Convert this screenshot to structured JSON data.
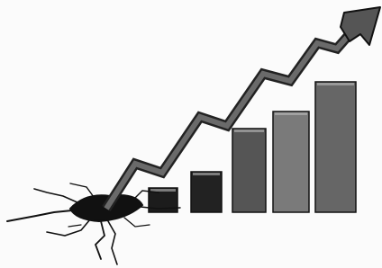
{
  "chart_data": {
    "type": "bar",
    "categories": [
      null,
      null,
      null,
      null,
      null
    ],
    "values": [
      27,
      45,
      93,
      112,
      145
    ],
    "colors": [
      "#1c1c1c",
      "#222222",
      "#555555",
      "#7a7a7a",
      "#666666"
    ],
    "ylim": [
      0,
      150
    ]
  }
}
